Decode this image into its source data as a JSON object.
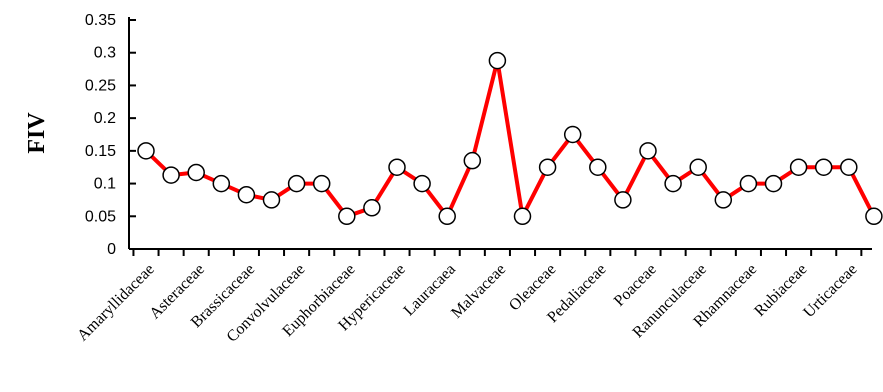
{
  "chart_data": {
    "type": "line",
    "title": "",
    "xlabel": "",
    "ylabel": "FIV",
    "ylim": [
      0,
      0.35
    ],
    "yticks": [
      "0",
      "0.05",
      "0.1",
      "0.15",
      "0.2",
      "0.25",
      "0.3",
      "0.35"
    ],
    "x_tick_labels": [
      "Amaryllidaceae",
      "Asteraceae",
      "Brassicaceae",
      "Convolvulaceae",
      "Euphorbiaceae",
      "Hypericaceae",
      "Lauracaea",
      "Malvaceae",
      "Oleaceae",
      "Pedaliaceae",
      "Poaceae",
      "Ranunculaceae",
      "Rhamnaceae",
      "Rubiaceae",
      "Urticaceae"
    ],
    "values": [
      0.15,
      0.113,
      0.117,
      0.1,
      0.083,
      0.075,
      0.1,
      0.1,
      0.05,
      0.063,
      0.125,
      0.1,
      0.05,
      0.135,
      0.288,
      0.05,
      0.125,
      0.175,
      0.125,
      0.075,
      0.15,
      0.1,
      0.125,
      0.075,
      0.1,
      0.1,
      0.125,
      0.125,
      0.125,
      0.05
    ],
    "line_color": "#ff0000",
    "marker": "open circle",
    "grid": false,
    "legend": "none"
  }
}
